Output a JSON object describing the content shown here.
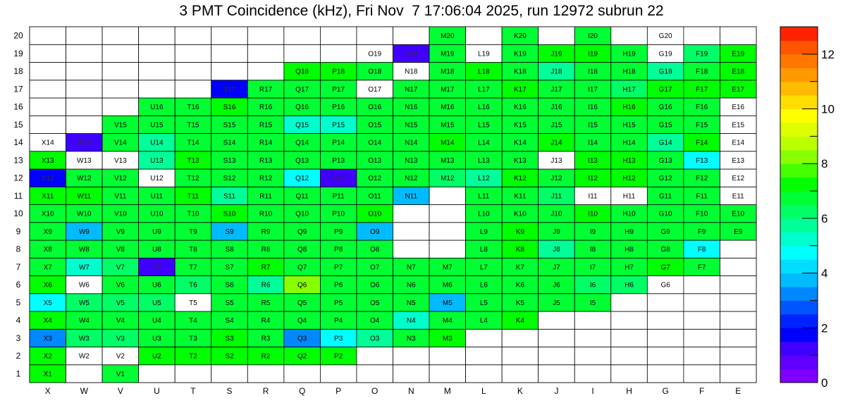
{
  "chart_data": {
    "type": "heatmap",
    "title": "3 PMT Coincidence (kHz), Fri Nov  7 17:06:04 2025, run 12972 subrun 22",
    "x_categories": [
      "X",
      "W",
      "V",
      "U",
      "T",
      "S",
      "R",
      "Q",
      "P",
      "O",
      "N",
      "M",
      "L",
      "K",
      "J",
      "I",
      "H",
      "G",
      "F",
      "E"
    ],
    "y_categories": [
      "1",
      "2",
      "3",
      "4",
      "5",
      "6",
      "7",
      "8",
      "9",
      "10",
      "11",
      "12",
      "13",
      "14",
      "15",
      "16",
      "17",
      "18",
      "19",
      "20"
    ],
    "zlim": [
      0,
      13
    ],
    "colorbar_ticks": [
      "0",
      "2",
      "4",
      "6",
      "8",
      "10",
      "12"
    ],
    "palette": [
      "#7f00ff",
      "#5f00ff",
      "#3f00ff",
      "#0000ff",
      "#0022ff",
      "#0055ff",
      "#0088ff",
      "#00bbff",
      "#00ddff",
      "#00ffff",
      "#00ffcc",
      "#00ff99",
      "#00ff66",
      "#00ff33",
      "#00ff00",
      "#44ff00",
      "#88ff00",
      "#bbff00",
      "#ddff00",
      "#ffff00",
      "#ffdd00",
      "#ffbb00",
      "#ff9900",
      "#ff7700",
      "#ff5500",
      "#ff2200"
    ],
    "row_values": {
      "1": {
        "X": 7,
        "V": 6.5
      },
      "2": {
        "X": 7,
        "W": 0,
        "V": 0,
        "U": 7,
        "T": 7,
        "S": 7.5,
        "R": 7,
        "Q": 7,
        "P": 7
      },
      "3": {
        "X": 3,
        "W": 6,
        "V": 6,
        "U": 6.5,
        "T": 6.5,
        "S": 7,
        "R": 6.5,
        "Q": 3,
        "P": 4.5,
        "O": 5.5,
        "N": 6.5,
        "M": 7
      },
      "4": {
        "X": 7.5,
        "W": 6.5,
        "V": 6.5,
        "U": 6.5,
        "T": 6.5,
        "S": 6.5,
        "R": 6.5,
        "Q": 6.5,
        "P": 6.5,
        "O": 6.5,
        "N": 5,
        "M": 6.5,
        "L": 6.5,
        "K": 7
      },
      "5": {
        "X": 4.5,
        "W": 6,
        "V": 6,
        "U": 6,
        "T": 0,
        "S": 6.5,
        "R": 6.5,
        "Q": 6.5,
        "P": 6.5,
        "O": 6.5,
        "N": 6.5,
        "M": 3.5,
        "L": 6.5,
        "K": 6.5,
        "J": 6.5,
        "I": 6.5
      },
      "6": {
        "X": 7,
        "W": 0,
        "V": 6.5,
        "U": 6.5,
        "T": 6,
        "S": 6.5,
        "R": 5.5,
        "Q": 8,
        "P": 6.5,
        "O": 6.5,
        "N": 6.5,
        "M": 6.5,
        "L": 6.5,
        "K": 6.5,
        "J": 6.5,
        "I": 6,
        "H": 6,
        "G": 0
      },
      "7": {
        "X": 6.5,
        "W": 5,
        "V": 6,
        "U": 1,
        "T": 6.5,
        "S": 6.5,
        "R": 7.5,
        "Q": 6.5,
        "P": 6.5,
        "O": 6.5,
        "N": 6.5,
        "M": 6.5,
        "L": 6.5,
        "K": 6.5,
        "J": 6.5,
        "I": 6.5,
        "H": 6.5,
        "G": 7,
        "F": 6.5
      },
      "8": {
        "X": 6.5,
        "W": 6.5,
        "V": 6.5,
        "U": 6.5,
        "T": 6.5,
        "S": 6.5,
        "R": 6.5,
        "Q": 6.5,
        "P": 6.5,
        "O": 6.5,
        "L": 6.5,
        "K": 7,
        "J": 5.5,
        "I": 6.5,
        "H": 6.5,
        "G": 6.5,
        "F": 4.5
      },
      "9": {
        "X": 6.5,
        "W": 3.5,
        "V": 6.5,
        "U": 6.5,
        "T": 6.5,
        "S": 3.5,
        "R": 6.5,
        "Q": 6.5,
        "P": 6.5,
        "O": 3.5,
        "L": 6.5,
        "K": 7.5,
        "J": 6.5,
        "I": 6.5,
        "H": 6.5,
        "G": 6.5,
        "F": 6.5,
        "E": 6.5
      },
      "10": {
        "X": 6.5,
        "W": 6.5,
        "V": 6.5,
        "U": 6.5,
        "T": 6.5,
        "S": 7.5,
        "R": 6.5,
        "Q": 6.5,
        "P": 6.5,
        "O": 7,
        "L": 6.5,
        "K": 6.5,
        "J": 6.5,
        "I": 7,
        "H": 6.5,
        "G": 6.5,
        "F": 6.5,
        "E": 6.5
      },
      "11": {
        "X": 7,
        "W": 7,
        "V": 6.5,
        "U": 6.5,
        "T": 7,
        "S": 5.5,
        "R": 6.5,
        "Q": 6.5,
        "P": 6.5,
        "O": 6.5,
        "N": 3.5,
        "L": 6.5,
        "K": 6.5,
        "J": 6,
        "I": 0,
        "H": 0,
        "G": 6.5,
        "F": 6.5,
        "E": 0
      },
      "12": {
        "X": 1.5,
        "W": 6.5,
        "V": 6.5,
        "U": 0,
        "T": 6.5,
        "S": 6.5,
        "R": 6.5,
        "Q": 4.5,
        "P": 1,
        "O": 6.5,
        "N": 6.5,
        "M": 6,
        "L": 5.5,
        "K": 7,
        "J": 6.5,
        "I": 7,
        "H": 7,
        "G": 6.5,
        "F": 6.5,
        "E": 0
      },
      "13": {
        "X": 7,
        "W": 0,
        "V": 0,
        "U": 5.5,
        "T": 7,
        "S": 6.5,
        "R": 6.5,
        "Q": 6.5,
        "P": 6.5,
        "O": 6.5,
        "N": 6.5,
        "M": 6.5,
        "L": 6.5,
        "K": 6.5,
        "J": 0,
        "I": 7,
        "H": 7,
        "G": 6.5,
        "F": 4.5,
        "E": 0
      },
      "14": {
        "X": 0,
        "W": 1,
        "V": 6.5,
        "U": 5.5,
        "T": 6.5,
        "S": 6.5,
        "R": 6.5,
        "Q": 6.5,
        "P": 6.5,
        "O": 6.5,
        "N": 6.5,
        "M": 7,
        "L": 6.5,
        "K": 6.5,
        "J": 7,
        "I": 6.5,
        "H": 6.5,
        "G": 5.5,
        "F": 7.5,
        "E": 0
      },
      "15": {
        "V": 6.5,
        "U": 6.5,
        "T": 6.5,
        "S": 6.5,
        "R": 6.5,
        "Q": 5,
        "P": 5,
        "O": 6.5,
        "N": 6.5,
        "M": 6.5,
        "L": 6.5,
        "K": 6.5,
        "J": 6.5,
        "I": 6.5,
        "H": 6.5,
        "G": 6.5,
        "F": 6.5,
        "E": 0
      },
      "16": {
        "U": 6.5,
        "T": 6.5,
        "S": 7,
        "R": 6.5,
        "Q": 6.5,
        "P": 6.5,
        "O": 6.5,
        "N": 6.5,
        "M": 6.5,
        "L": 6.5,
        "K": 6.5,
        "J": 6.5,
        "I": 6.5,
        "H": 7,
        "G": 6.5,
        "F": 6.5,
        "E": 0
      },
      "17": {
        "S": 1.5,
        "R": 6.5,
        "Q": 6.5,
        "P": 6.5,
        "O": 0,
        "N": 6.5,
        "M": 6.5,
        "L": 6.5,
        "K": 7,
        "J": 6.5,
        "I": 6.5,
        "H": 6,
        "G": 7,
        "F": 7,
        "E": 7
      },
      "18": {
        "Q": 7,
        "P": 7,
        "O": 6.5,
        "N": 0,
        "M": 6.5,
        "L": 7,
        "K": 6.5,
        "J": 5.5,
        "I": 6.5,
        "H": 6.5,
        "G": 5.5,
        "F": 6.5,
        "E": 7
      },
      "19": {
        "O": 0,
        "N": 1,
        "M": 6.5,
        "L": 0,
        "K": 6.5,
        "J": 7,
        "I": 7,
        "H": 6.5,
        "G": 0,
        "F": 6,
        "E": 7
      },
      "20": {
        "M": 6.5,
        "K": 6.5,
        "I": 6.5,
        "G": 0
      }
    }
  }
}
